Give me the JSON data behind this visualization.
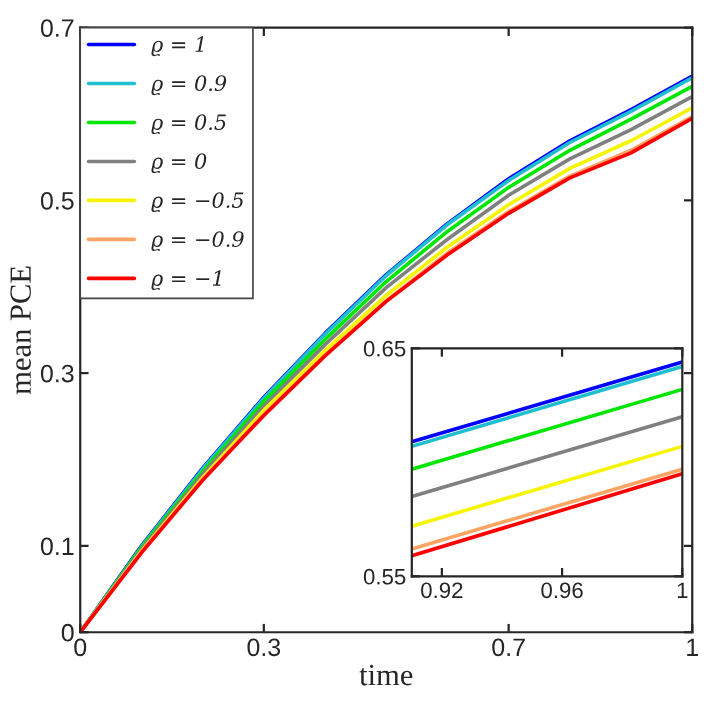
{
  "chart_data": [
    {
      "type": "line",
      "xlabel": "time",
      "ylabel": "mean PCE",
      "x": [
        0,
        0.1,
        0.2,
        0.3,
        0.4,
        0.5,
        0.6,
        0.7,
        0.8,
        0.9,
        1
      ],
      "xlim": [
        0,
        1
      ],
      "ylim": [
        0,
        0.7
      ],
      "xticks": [
        0,
        0.3,
        0.7,
        1
      ],
      "yticks": [
        0,
        0.1,
        0.3,
        0.5,
        0.7
      ],
      "legend": "top left",
      "series": [
        {
          "name": "ϱ = 1",
          "color": "#0000ff",
          "values": [
            0,
            0.1,
            0.19,
            0.272,
            0.346,
            0.414,
            0.473,
            0.525,
            0.569,
            0.605,
            0.644
          ]
        },
        {
          "name": "ϱ = 0.9",
          "color": "#1fbfcf",
          "values": [
            0,
            0.099,
            0.189,
            0.271,
            0.345,
            0.413,
            0.472,
            0.523,
            0.567,
            0.603,
            0.642
          ]
        },
        {
          "name": "ϱ = 0.5",
          "color": "#00e600",
          "values": [
            0,
            0.098,
            0.186,
            0.267,
            0.339,
            0.406,
            0.464,
            0.515,
            0.558,
            0.594,
            0.632
          ]
        },
        {
          "name": "ϱ = 0",
          "color": "#808080",
          "values": [
            0,
            0.096,
            0.183,
            0.262,
            0.333,
            0.399,
            0.455,
            0.506,
            0.548,
            0.582,
            0.62
          ]
        },
        {
          "name": "ϱ = −0.5",
          "color": "#f5f500",
          "values": [
            0,
            0.094,
            0.179,
            0.257,
            0.326,
            0.39,
            0.446,
            0.495,
            0.537,
            0.569,
            0.607
          ]
        },
        {
          "name": "ϱ = −0.9",
          "color": "#ffa564",
          "values": [
            0,
            0.093,
            0.177,
            0.252,
            0.321,
            0.384,
            0.439,
            0.487,
            0.528,
            0.558,
            0.597
          ]
        },
        {
          "name": "ϱ = −1",
          "color": "#ff0000",
          "values": [
            0,
            0.092,
            0.176,
            0.251,
            0.32,
            0.383,
            0.437,
            0.485,
            0.526,
            0.555,
            0.595
          ]
        }
      ]
    },
    {
      "type": "line",
      "x": [
        0.91,
        1
      ],
      "xlim": [
        0.91,
        1
      ],
      "ylim": [
        0.55,
        0.65
      ],
      "xticks": [
        0.92,
        0.96,
        1
      ],
      "yticks": [
        0.55,
        0.65
      ],
      "series": [
        {
          "color": "#0000ff",
          "values": [
            0.609,
            0.644
          ]
        },
        {
          "color": "#1fbfcf",
          "values": [
            0.607,
            0.642
          ]
        },
        {
          "color": "#00e600",
          "values": [
            0.597,
            0.632
          ]
        },
        {
          "color": "#808080",
          "values": [
            0.585,
            0.62
          ]
        },
        {
          "color": "#f5f500",
          "values": [
            0.572,
            0.607
          ]
        },
        {
          "color": "#ffa564",
          "values": [
            0.562,
            0.597
          ]
        },
        {
          "color": "#ff0000",
          "values": [
            0.559,
            0.595
          ]
        }
      ]
    }
  ]
}
